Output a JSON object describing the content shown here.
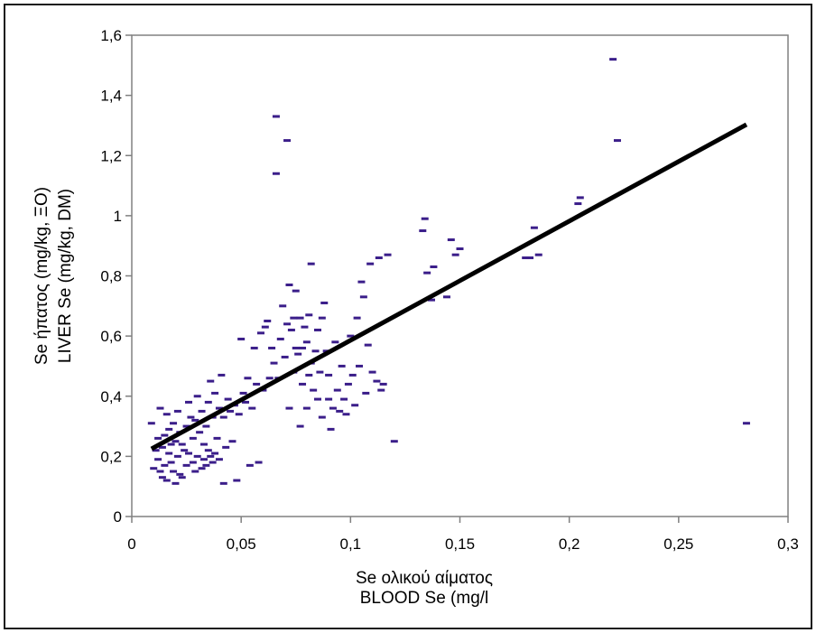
{
  "chart_data": {
    "type": "scatter",
    "title": "",
    "xlabel": [
      "Se ολικού αίματος",
      "BLOOD Se (mg/l"
    ],
    "ylabel": [
      "Se ήπατος (mg/kg, ΞΟ)",
      "LIVER Se (mg/kg, DM)"
    ],
    "xlim": [
      0,
      0.3
    ],
    "ylim": [
      0,
      1.6
    ],
    "x_ticks": [
      "0",
      "0,05",
      "0,1",
      "0,15",
      "0,2",
      "0,25",
      "0,3"
    ],
    "y_ticks": [
      "0",
      "0,2",
      "0,4",
      "0,6",
      "0,8",
      "1",
      "1,2",
      "1,4",
      "1,6"
    ],
    "grid": false,
    "marker_color": "#3b1e8a",
    "trendline_color": "#000000",
    "series": [
      {
        "points": [
          [
            0.009,
            0.31
          ],
          [
            0.01,
            0.16
          ],
          [
            0.011,
            0.22
          ],
          [
            0.012,
            0.26
          ],
          [
            0.012,
            0.19
          ],
          [
            0.013,
            0.15
          ],
          [
            0.013,
            0.36
          ],
          [
            0.014,
            0.13
          ],
          [
            0.014,
            0.23
          ],
          [
            0.015,
            0.27
          ],
          [
            0.015,
            0.17
          ],
          [
            0.016,
            0.12
          ],
          [
            0.016,
            0.34
          ],
          [
            0.017,
            0.21
          ],
          [
            0.017,
            0.29
          ],
          [
            0.018,
            0.18
          ],
          [
            0.018,
            0.24
          ],
          [
            0.019,
            0.15
          ],
          [
            0.019,
            0.31
          ],
          [
            0.02,
            0.11
          ],
          [
            0.02,
            0.25
          ],
          [
            0.021,
            0.35
          ],
          [
            0.021,
            0.2
          ],
          [
            0.022,
            0.14
          ],
          [
            0.022,
            0.28
          ],
          [
            0.023,
            0.24
          ],
          [
            0.023,
            0.13
          ],
          [
            0.024,
            0.22
          ],
          [
            0.025,
            0.3
          ],
          [
            0.025,
            0.17
          ],
          [
            0.026,
            0.38
          ],
          [
            0.026,
            0.21
          ],
          [
            0.027,
            0.33
          ],
          [
            0.028,
            0.18
          ],
          [
            0.028,
            0.26
          ],
          [
            0.029,
            0.15
          ],
          [
            0.029,
            0.32
          ],
          [
            0.03,
            0.2
          ],
          [
            0.03,
            0.4
          ],
          [
            0.031,
            0.28
          ],
          [
            0.032,
            0.16
          ],
          [
            0.032,
            0.35
          ],
          [
            0.033,
            0.24
          ],
          [
            0.033,
            0.19
          ],
          [
            0.034,
            0.3
          ],
          [
            0.034,
            0.17
          ],
          [
            0.035,
            0.22
          ],
          [
            0.035,
            0.38
          ],
          [
            0.036,
            0.2
          ],
          [
            0.036,
            0.45
          ],
          [
            0.037,
            0.18
          ],
          [
            0.037,
            0.33
          ],
          [
            0.038,
            0.21
          ],
          [
            0.038,
            0.41
          ],
          [
            0.039,
            0.26
          ],
          [
            0.04,
            0.19
          ],
          [
            0.04,
            0.36
          ],
          [
            0.041,
            0.47
          ],
          [
            0.042,
            0.33
          ],
          [
            0.042,
            0.11
          ],
          [
            0.043,
            0.23
          ],
          [
            0.044,
            0.39
          ],
          [
            0.045,
            0.35
          ],
          [
            0.046,
            0.25
          ],
          [
            0.047,
            0.37
          ],
          [
            0.048,
            0.12
          ],
          [
            0.049,
            0.34
          ],
          [
            0.05,
            0.59
          ],
          [
            0.051,
            0.41
          ],
          [
            0.052,
            0.38
          ],
          [
            0.053,
            0.46
          ],
          [
            0.054,
            0.17
          ],
          [
            0.055,
            0.36
          ],
          [
            0.056,
            0.56
          ],
          [
            0.057,
            0.44
          ],
          [
            0.058,
            0.18
          ],
          [
            0.059,
            0.61
          ],
          [
            0.06,
            0.42
          ],
          [
            0.061,
            0.63
          ],
          [
            0.062,
            0.65
          ],
          [
            0.063,
            0.46
          ],
          [
            0.064,
            0.56
          ],
          [
            0.065,
            0.51
          ],
          [
            0.066,
            1.33
          ],
          [
            0.066,
            1.14
          ],
          [
            0.067,
            0.46
          ],
          [
            0.068,
            0.59
          ],
          [
            0.069,
            0.7
          ],
          [
            0.07,
            0.53
          ],
          [
            0.071,
            1.25
          ],
          [
            0.071,
            0.64
          ],
          [
            0.072,
            0.77
          ],
          [
            0.072,
            0.36
          ],
          [
            0.073,
            0.62
          ],
          [
            0.074,
            0.66
          ],
          [
            0.074,
            0.48
          ],
          [
            0.075,
            0.75
          ],
          [
            0.075,
            0.56
          ],
          [
            0.076,
            0.54
          ],
          [
            0.077,
            0.3
          ],
          [
            0.077,
            0.66
          ],
          [
            0.078,
            0.56
          ],
          [
            0.078,
            0.44
          ],
          [
            0.079,
            0.63
          ],
          [
            0.08,
            0.58
          ],
          [
            0.08,
            0.36
          ],
          [
            0.081,
            0.67
          ],
          [
            0.081,
            0.47
          ],
          [
            0.082,
            0.84
          ],
          [
            0.082,
            0.51
          ],
          [
            0.083,
            0.42
          ],
          [
            0.084,
            0.55
          ],
          [
            0.085,
            0.62
          ],
          [
            0.085,
            0.39
          ],
          [
            0.086,
            0.48
          ],
          [
            0.087,
            0.66
          ],
          [
            0.087,
            0.33
          ],
          [
            0.088,
            0.71
          ],
          [
            0.089,
            0.55
          ],
          [
            0.09,
            0.39
          ],
          [
            0.09,
            0.47
          ],
          [
            0.091,
            0.29
          ],
          [
            0.092,
            0.36
          ],
          [
            0.093,
            0.58
          ],
          [
            0.094,
            0.42
          ],
          [
            0.095,
            0.35
          ],
          [
            0.096,
            0.5
          ],
          [
            0.097,
            0.39
          ],
          [
            0.098,
            0.34
          ],
          [
            0.099,
            0.44
          ],
          [
            0.1,
            0.6
          ],
          [
            0.101,
            0.47
          ],
          [
            0.102,
            0.37
          ],
          [
            0.103,
            0.66
          ],
          [
            0.104,
            0.5
          ],
          [
            0.105,
            0.78
          ],
          [
            0.106,
            0.73
          ],
          [
            0.107,
            0.41
          ],
          [
            0.108,
            0.57
          ],
          [
            0.109,
            0.84
          ],
          [
            0.11,
            0.48
          ],
          [
            0.112,
            0.45
          ],
          [
            0.113,
            0.86
          ],
          [
            0.114,
            0.42
          ],
          [
            0.115,
            0.44
          ],
          [
            0.117,
            0.87
          ],
          [
            0.12,
            0.25
          ],
          [
            0.133,
            0.95
          ],
          [
            0.134,
            0.99
          ],
          [
            0.135,
            0.81
          ],
          [
            0.137,
            0.72
          ],
          [
            0.138,
            0.83
          ],
          [
            0.144,
            0.73
          ],
          [
            0.146,
            0.92
          ],
          [
            0.148,
            0.87
          ],
          [
            0.15,
            0.89
          ],
          [
            0.18,
            0.86
          ],
          [
            0.182,
            0.86
          ],
          [
            0.184,
            0.96
          ],
          [
            0.186,
            0.87
          ],
          [
            0.204,
            1.04
          ],
          [
            0.205,
            1.06
          ],
          [
            0.22,
            1.52
          ],
          [
            0.222,
            1.25
          ],
          [
            0.281,
            0.31
          ]
        ]
      }
    ],
    "trendline": {
      "x": [
        0.009,
        0.281
      ],
      "y": [
        0.225,
        1.303
      ]
    }
  }
}
